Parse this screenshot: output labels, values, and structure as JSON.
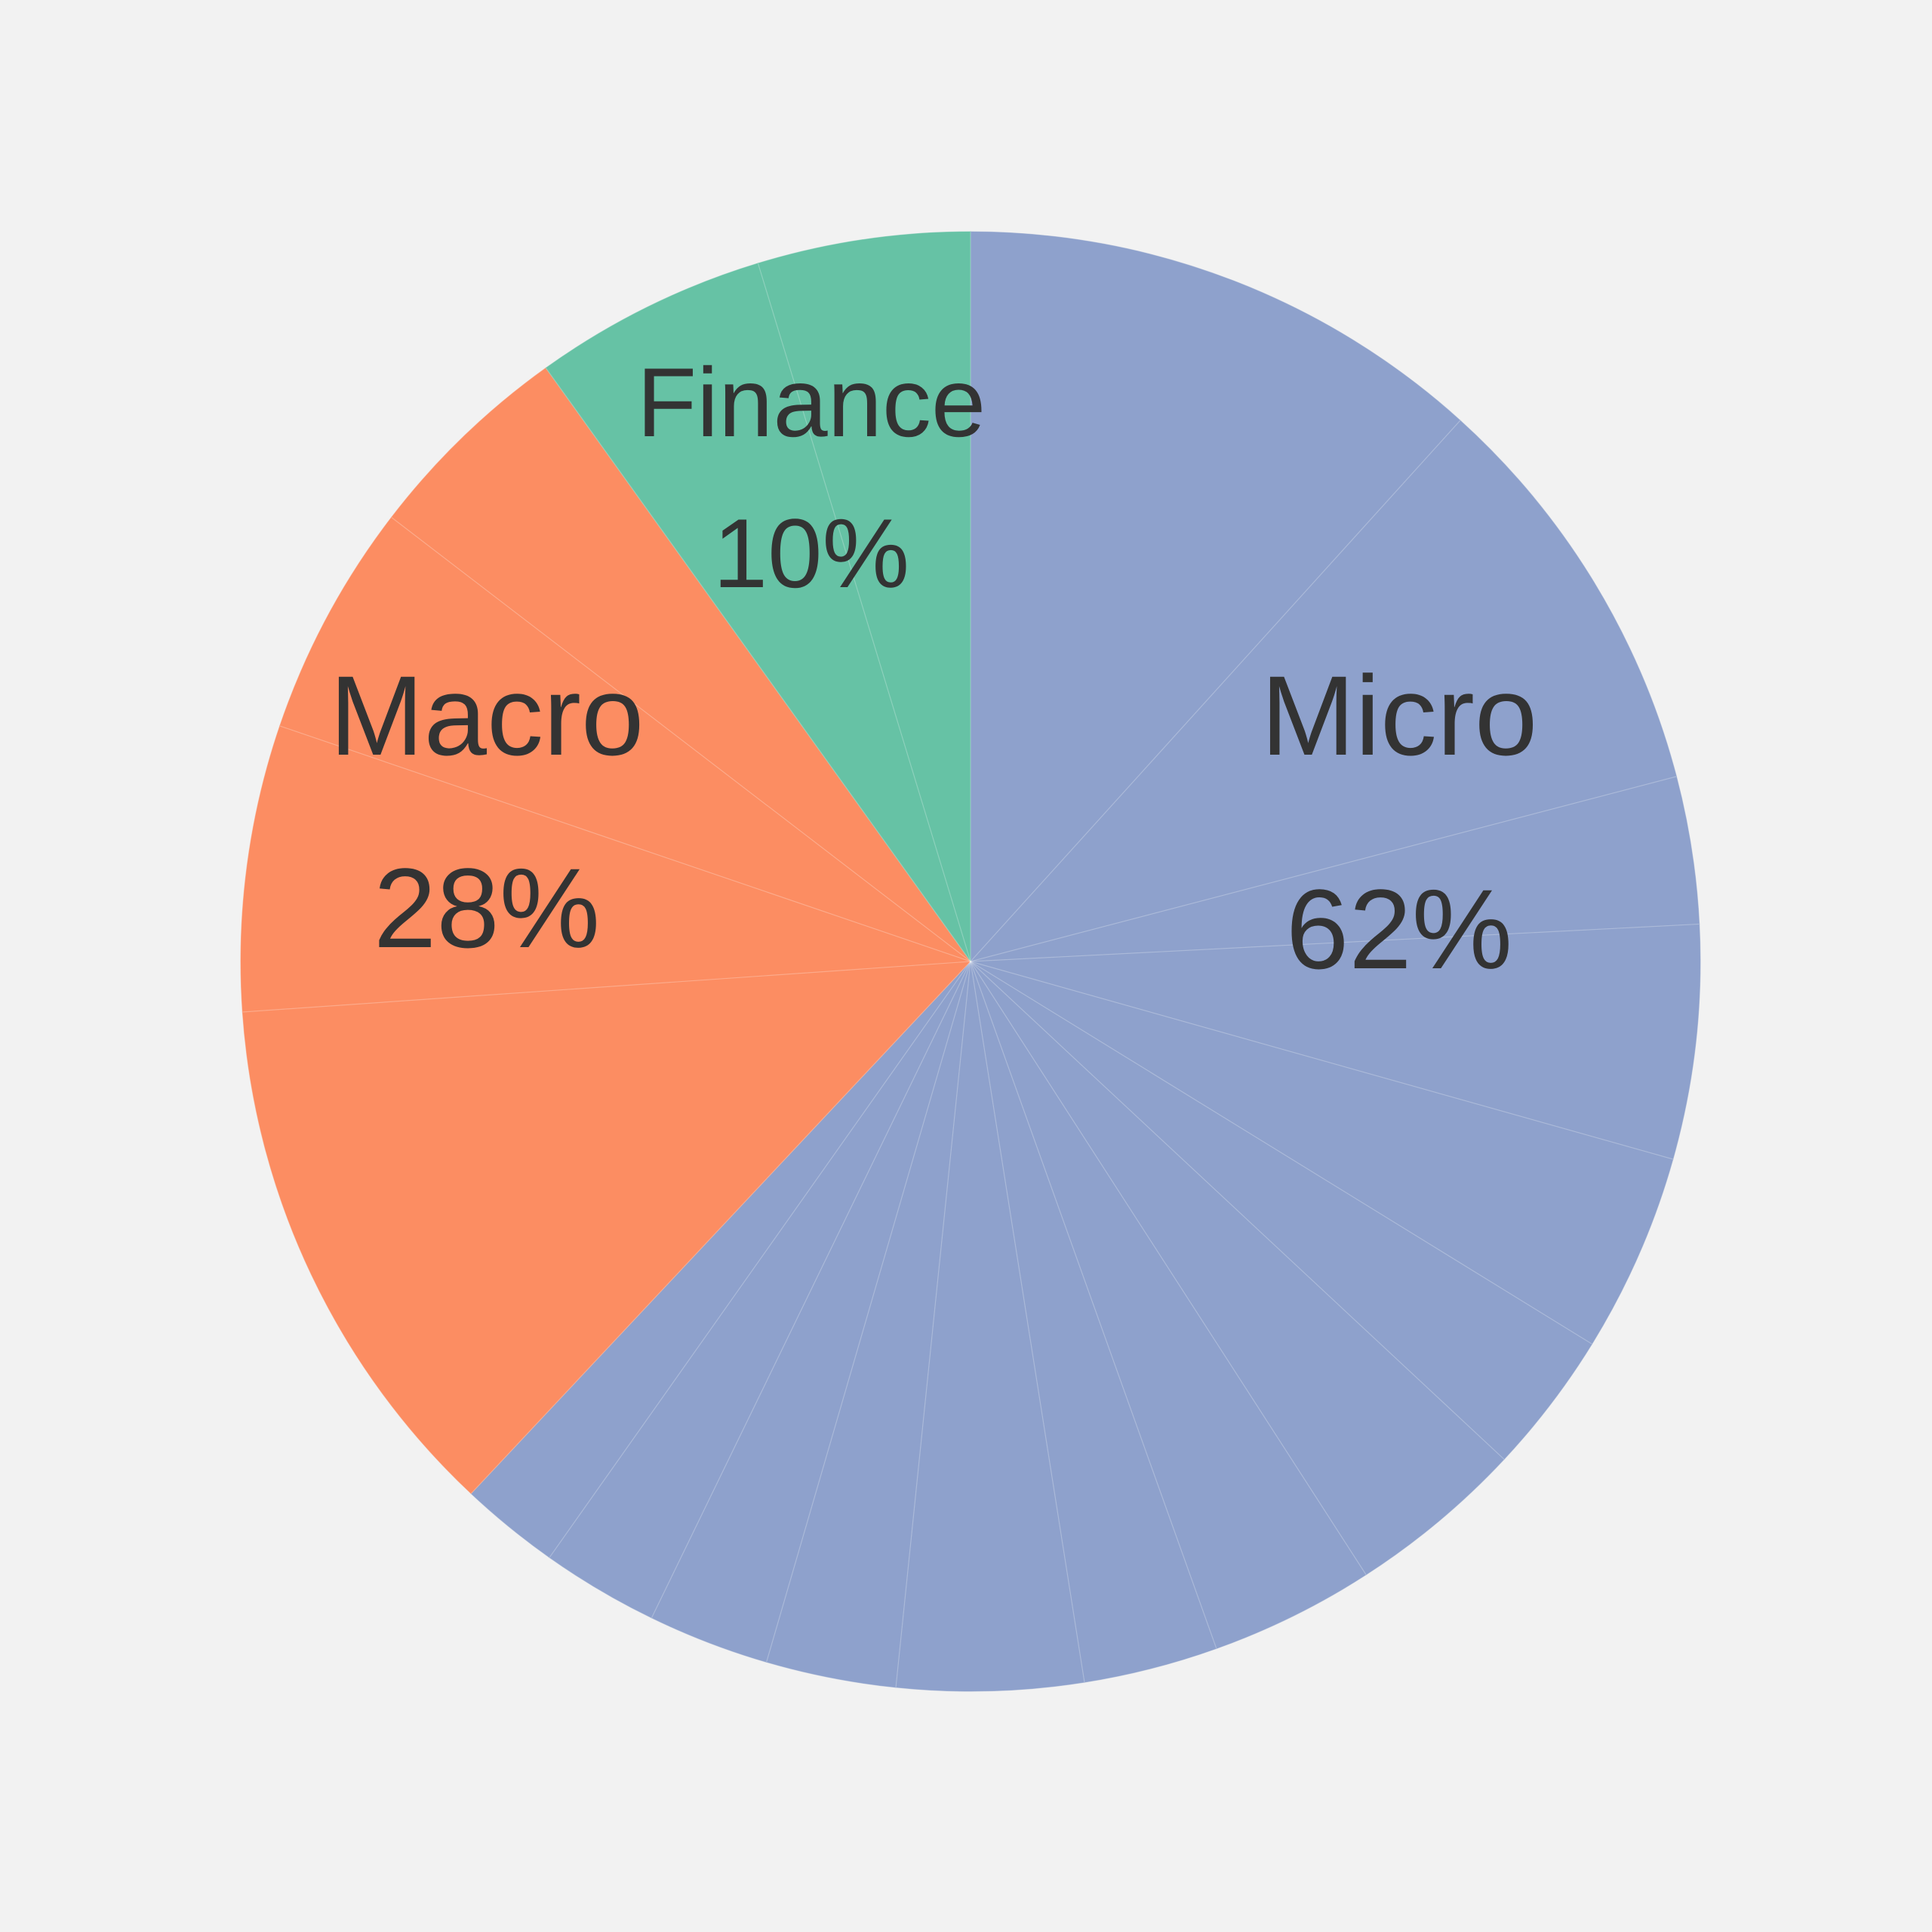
{
  "chart_data": {
    "type": "pie",
    "title": "",
    "start": "top",
    "direction": "clockwise",
    "groups": [
      {
        "name": "Micro",
        "percent_label": "62%",
        "color": "#8ea1cc",
        "sub_slices": [
          12.2,
          9.6,
          3.4,
          5.4,
          4.6,
          3.3,
          4.1,
          3.8,
          3.1,
          4.3,
          3.0,
          2.8,
          2.7,
          2.3
        ]
      },
      {
        "name": "Macro",
        "percent_label": "28%",
        "color": "#fc8d62",
        "sub_slices": [
          12.4,
          6.6,
          5.4,
          4.9
        ]
      },
      {
        "name": "Finance",
        "percent_label": "10%",
        "color": "#66c2a5",
        "sub_slices": [
          5.4,
          4.9
        ]
      }
    ]
  }
}
